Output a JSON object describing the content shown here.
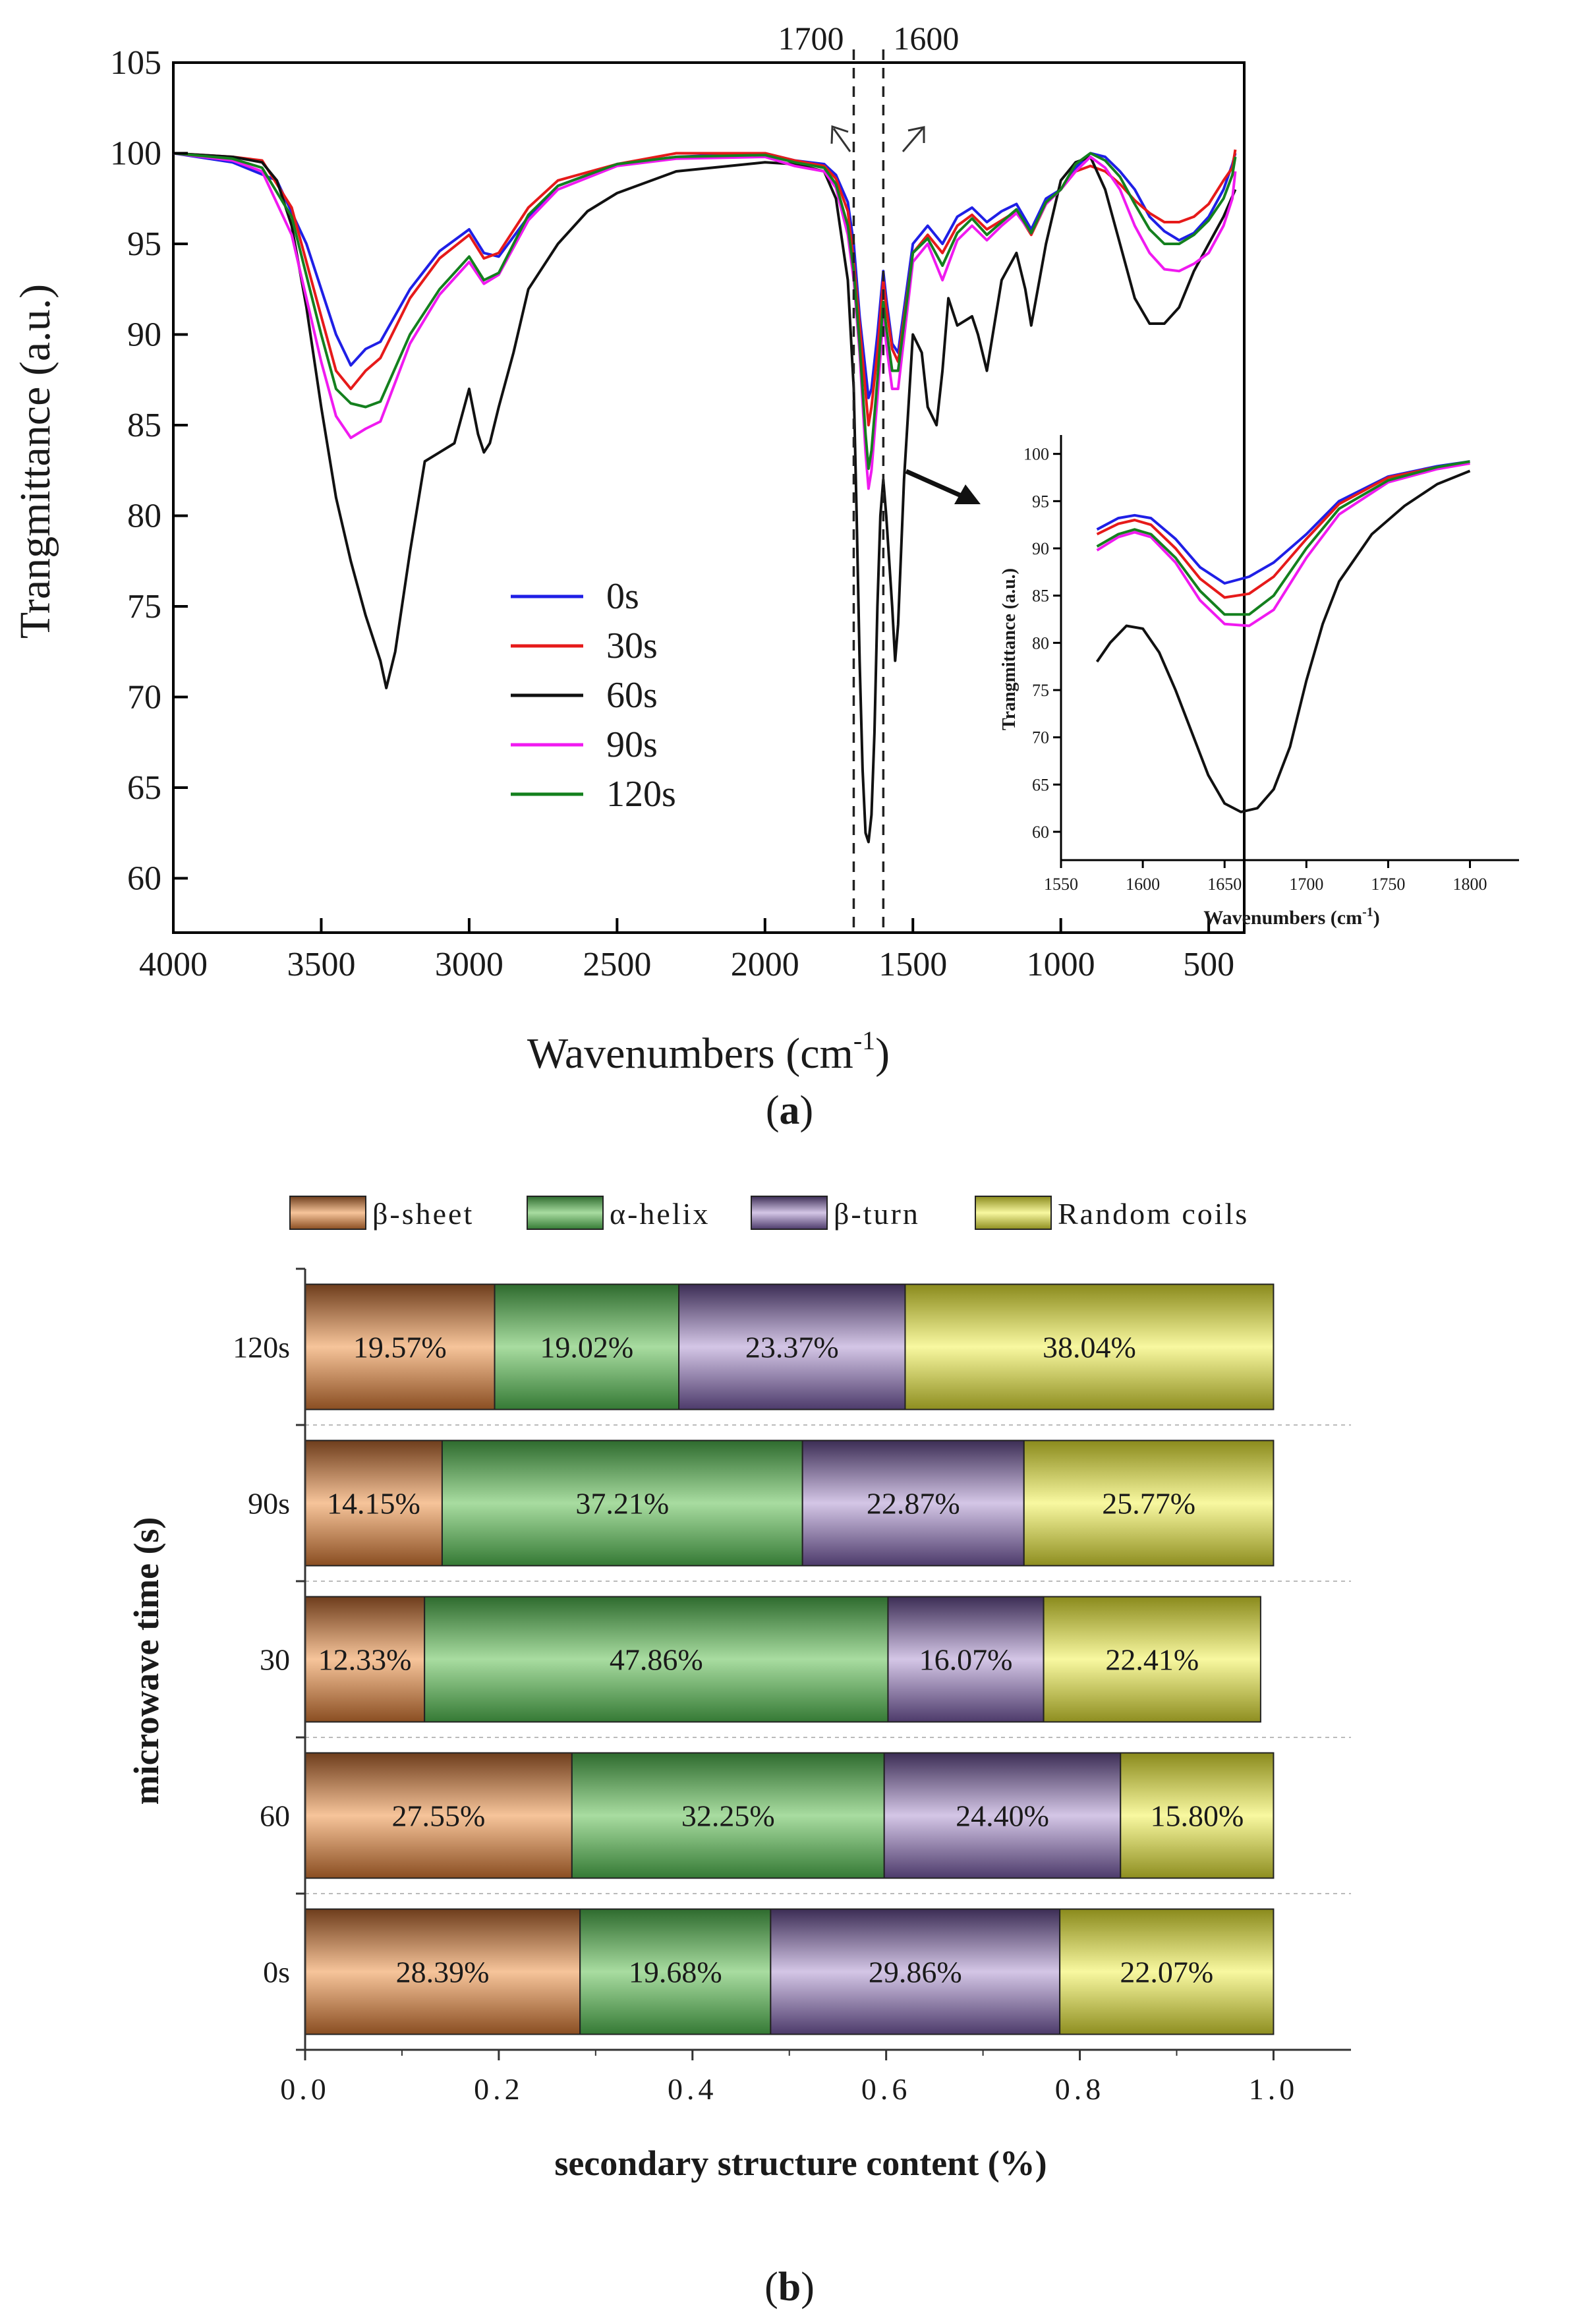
{
  "colors": {
    "s0": "#1f1fe6",
    "s30": "#e61a1a",
    "s60": "#111111",
    "s90": "#f01af0",
    "s120": "#14801e",
    "beta_sheet": "#e2915a",
    "alpha_helix": "#6ec46e",
    "beta_turn": "#9b86b5",
    "random_coils": "#e6e65a"
  },
  "chart_data": [
    {
      "id": "a",
      "type": "line",
      "panel_label": "a",
      "xlabel": "Wavenumbers (cm",
      "xlabel_sup": "-1",
      "xlabel_end": ")",
      "ylabel": "Trangmittance (a.u.)",
      "xlim": [
        4000,
        380
      ],
      "ylim": [
        57,
        105
      ],
      "x_ticks": [
        "4000",
        "3500",
        "3000",
        "2500",
        "2000",
        "1500",
        "1000",
        "500"
      ],
      "y_ticks": [
        "60",
        "65",
        "70",
        "75",
        "80",
        "85",
        "90",
        "95",
        "100",
        "105"
      ],
      "reference_lines": [
        {
          "x": 1700,
          "label": "1700"
        },
        {
          "x": 1600,
          "label": "1600"
        }
      ],
      "legend": [
        "0s",
        "30s",
        "60s",
        "90s",
        "120s"
      ],
      "series": [
        {
          "name": "0s",
          "color_key": "s0",
          "x": [
            4000,
            3800,
            3650,
            3550,
            3450,
            3400,
            3350,
            3300,
            3200,
            3100,
            3000,
            2950,
            2900,
            2800,
            2700,
            2500,
            2300,
            2000,
            1900,
            1800,
            1760,
            1720,
            1700,
            1680,
            1660,
            1650,
            1640,
            1620,
            1600,
            1590,
            1570,
            1550,
            1500,
            1450,
            1400,
            1350,
            1300,
            1250,
            1200,
            1150,
            1100,
            1050,
            1000,
            950,
            900,
            850,
            800,
            750,
            700,
            650,
            600,
            550,
            500,
            450,
            420,
            410
          ],
          "y": [
            100,
            99.5,
            98.5,
            95,
            90,
            88.3,
            89.2,
            89.6,
            92.5,
            94.6,
            95.8,
            94.5,
            94.3,
            96.5,
            98.2,
            99.4,
            99.8,
            100,
            99.6,
            99.4,
            98.8,
            97.3,
            95,
            91,
            88,
            86.5,
            87,
            90,
            93.5,
            92,
            89.5,
            89,
            95,
            96,
            95,
            96.5,
            97,
            96.2,
            96.8,
            97.2,
            95.8,
            97.5,
            98,
            99.2,
            100,
            99.8,
            99,
            98,
            96.5,
            95.7,
            95.2,
            95.6,
            96.5,
            98,
            99.4,
            100
          ]
        },
        {
          "name": "30s",
          "color_key": "s30",
          "x": [
            4000,
            3800,
            3700,
            3600,
            3500,
            3450,
            3400,
            3350,
            3300,
            3200,
            3100,
            3000,
            2950,
            2900,
            2800,
            2700,
            2500,
            2300,
            2000,
            1900,
            1800,
            1760,
            1720,
            1700,
            1680,
            1660,
            1650,
            1640,
            1620,
            1600,
            1590,
            1570,
            1550,
            1500,
            1450,
            1400,
            1350,
            1300,
            1250,
            1200,
            1150,
            1100,
            1050,
            1000,
            950,
            900,
            850,
            800,
            750,
            700,
            650,
            600,
            550,
            500,
            450,
            420,
            410
          ],
          "y": [
            100,
            99.8,
            99.6,
            97,
            91,
            88,
            87,
            88,
            88.7,
            92,
            94.2,
            95.5,
            94.2,
            94.5,
            97,
            98.5,
            99.4,
            100,
            100,
            99.6,
            99.3,
            98.6,
            96.8,
            94,
            90.5,
            86.8,
            85,
            86,
            89,
            93,
            91.5,
            89.2,
            88.5,
            94.5,
            95.5,
            94.5,
            96,
            96.6,
            95.8,
            96.3,
            96.8,
            95.5,
            97.2,
            98,
            99,
            99.3,
            99,
            98.3,
            97.4,
            96.7,
            96.2,
            96.2,
            96.5,
            97.2,
            98.5,
            99.2,
            100.2
          ]
        },
        {
          "name": "60s",
          "color_key": "s60",
          "x": [
            4000,
            3800,
            3700,
            3650,
            3600,
            3550,
            3500,
            3450,
            3400,
            3350,
            3300,
            3280,
            3250,
            3200,
            3150,
            3100,
            3050,
            3000,
            2970,
            2950,
            2930,
            2900,
            2850,
            2800,
            2700,
            2600,
            2500,
            2300,
            2000,
            1900,
            1800,
            1760,
            1720,
            1700,
            1690,
            1680,
            1670,
            1660,
            1650,
            1640,
            1630,
            1620,
            1610,
            1600,
            1590,
            1570,
            1560,
            1550,
            1530,
            1500,
            1470,
            1450,
            1420,
            1400,
            1380,
            1350,
            1300,
            1280,
            1250,
            1220,
            1200,
            1150,
            1120,
            1100,
            1050,
            1000,
            950,
            900,
            850,
            800,
            750,
            700,
            650,
            600,
            550,
            500,
            450,
            410
          ],
          "y": [
            100,
            99.8,
            99.5,
            98.5,
            96,
            91.5,
            86,
            81,
            77.5,
            74.5,
            72,
            70.5,
            72.5,
            78,
            83,
            83.5,
            84,
            87,
            84.5,
            83.5,
            84,
            86,
            89,
            92.5,
            95,
            96.8,
            97.8,
            99,
            99.5,
            99.4,
            99,
            97.5,
            93,
            87,
            80,
            72,
            66,
            62.5,
            62,
            63.5,
            68,
            75,
            80,
            82,
            80,
            75,
            72,
            74,
            82,
            90,
            89,
            86,
            85,
            88,
            92,
            90.5,
            91,
            90,
            88,
            91,
            93,
            94.5,
            92.5,
            90.5,
            95,
            98.5,
            99.5,
            99.8,
            98,
            95,
            92,
            90.6,
            90.6,
            91.5,
            93.5,
            95,
            96.5,
            98
          ]
        },
        {
          "name": "90s",
          "color_key": "s90",
          "x": [
            4000,
            3800,
            3700,
            3600,
            3500,
            3450,
            3400,
            3350,
            3300,
            3200,
            3100,
            3000,
            2950,
            2900,
            2800,
            2700,
            2500,
            2300,
            2000,
            1900,
            1800,
            1760,
            1720,
            1700,
            1680,
            1660,
            1650,
            1640,
            1620,
            1600,
            1590,
            1570,
            1550,
            1500,
            1450,
            1400,
            1350,
            1300,
            1250,
            1200,
            1150,
            1100,
            1050,
            1000,
            950,
            900,
            850,
            800,
            750,
            700,
            650,
            600,
            550,
            500,
            450,
            420,
            410
          ],
          "y": [
            100,
            99.6,
            99,
            95.5,
            88.5,
            85.5,
            84.3,
            84.8,
            85.2,
            89.5,
            92.2,
            94,
            92.8,
            93.3,
            96.3,
            98,
            99.3,
            99.7,
            99.8,
            99.3,
            99,
            98.1,
            95.5,
            93,
            89,
            83.5,
            81.5,
            82.5,
            86.5,
            91,
            89.5,
            87,
            87,
            94,
            95,
            93,
            95.2,
            96,
            95.2,
            96,
            96.7,
            95.6,
            97.2,
            98,
            99,
            99.8,
            99.2,
            98,
            96,
            94.5,
            93.6,
            93.5,
            93.9,
            94.5,
            96,
            97.5,
            99
          ]
        },
        {
          "name": "120s",
          "color_key": "s120",
          "x": [
            4000,
            3800,
            3700,
            3600,
            3500,
            3450,
            3400,
            3350,
            3300,
            3200,
            3100,
            3000,
            2950,
            2900,
            2800,
            2700,
            2500,
            2300,
            2000,
            1900,
            1800,
            1760,
            1720,
            1700,
            1680,
            1660,
            1650,
            1640,
            1620,
            1600,
            1590,
            1570,
            1550,
            1500,
            1450,
            1400,
            1350,
            1300,
            1250,
            1200,
            1150,
            1100,
            1050,
            1000,
            950,
            900,
            850,
            800,
            750,
            700,
            650,
            600,
            550,
            500,
            450,
            420,
            410
          ],
          "y": [
            100,
            99.7,
            99.2,
            96.5,
            90,
            87,
            86.2,
            86,
            86.3,
            90,
            92.5,
            94.3,
            93,
            93.4,
            96.6,
            98.2,
            99.4,
            99.8,
            99.9,
            99.5,
            99.2,
            98.3,
            96,
            93.5,
            89.5,
            84.5,
            82.6,
            83.6,
            87.5,
            91.8,
            90.4,
            88,
            88,
            94.5,
            95.3,
            93.8,
            95.6,
            96.4,
            95.5,
            96.2,
            96.9,
            95.6,
            97.3,
            98,
            99.4,
            100,
            99.6,
            98.7,
            97.2,
            95.8,
            95,
            95,
            95.5,
            96.3,
            97.5,
            98.8,
            99.8
          ]
        }
      ]
    },
    {
      "id": "a-inset",
      "type": "line",
      "xlabel": "Wavenumbers (cm",
      "xlabel_sup": "-1",
      "xlabel_end": ")",
      "ylabel": "Trangmittance (a.u.)",
      "xlim": [
        1550,
        1830
      ],
      "ylim": [
        57,
        102
      ],
      "x_ticks": [
        "1550",
        "1600",
        "1650",
        "1700",
        "1750",
        "1800"
      ],
      "y_ticks": [
        "60",
        "65",
        "70",
        "75",
        "80",
        "85",
        "90",
        "95",
        "100"
      ],
      "series": [
        {
          "name": "0s",
          "color_key": "s0",
          "x": [
            1572,
            1585,
            1595,
            1605,
            1620,
            1635,
            1650,
            1665,
            1680,
            1700,
            1720,
            1750,
            1780,
            1800
          ],
          "y": [
            92,
            93.2,
            93.5,
            93.2,
            91,
            88,
            86.3,
            87,
            88.5,
            91.5,
            95,
            97.6,
            98.7,
            99.2
          ]
        },
        {
          "name": "30s",
          "color_key": "s30",
          "x": [
            1572,
            1585,
            1595,
            1605,
            1620,
            1635,
            1650,
            1665,
            1680,
            1700,
            1720,
            1750,
            1780,
            1800
          ],
          "y": [
            91.5,
            92.6,
            93,
            92.5,
            90,
            86.8,
            84.8,
            85.2,
            87,
            91,
            94.7,
            97.5,
            98.6,
            99
          ]
        },
        {
          "name": "60s",
          "color_key": "s60",
          "x": [
            1572,
            1580,
            1590,
            1600,
            1610,
            1620,
            1630,
            1640,
            1650,
            1660,
            1670,
            1680,
            1690,
            1700,
            1710,
            1720,
            1740,
            1760,
            1780,
            1800
          ],
          "y": [
            78,
            80,
            81.8,
            81.5,
            79,
            75,
            70.5,
            66,
            63,
            62.1,
            62.5,
            64.5,
            69,
            76,
            82,
            86.5,
            91.5,
            94.5,
            96.8,
            98.2
          ]
        },
        {
          "name": "90s",
          "color_key": "s90",
          "x": [
            1572,
            1585,
            1595,
            1605,
            1620,
            1635,
            1650,
            1665,
            1680,
            1700,
            1720,
            1750,
            1780,
            1800
          ],
          "y": [
            89.8,
            91.2,
            91.7,
            91.2,
            88.5,
            84.5,
            82,
            81.8,
            83.5,
            89,
            93.6,
            97,
            98.4,
            99
          ]
        },
        {
          "name": "120s",
          "color_key": "s120",
          "x": [
            1572,
            1585,
            1595,
            1605,
            1620,
            1635,
            1650,
            1665,
            1680,
            1700,
            1720,
            1750,
            1780,
            1800
          ],
          "y": [
            90.2,
            91.5,
            92,
            91.5,
            89,
            85.5,
            83,
            83,
            85,
            90,
            94.2,
            97.2,
            98.6,
            99.2
          ]
        }
      ]
    },
    {
      "id": "b",
      "type": "bar",
      "orientation": "horizontal",
      "stacked": true,
      "panel_label": "b",
      "xlabel": "secondary structure content (%)",
      "ylabel": "microwave time (s)",
      "xlim": [
        0,
        1.08
      ],
      "x_ticks": [
        "0.0",
        "0.2",
        "0.4",
        "0.6",
        "0.8",
        "1.0"
      ],
      "categories": [
        "120s",
        "90s",
        "30",
        "60",
        "0s"
      ],
      "legend": [
        "β-sheet",
        "α-helix",
        "β-turn",
        "Random coils"
      ],
      "series": [
        {
          "name": "β-sheet",
          "color_key": "beta_sheet",
          "values": [
            0.1957,
            0.1415,
            0.1233,
            0.2755,
            0.2839
          ],
          "labels": [
            "19.57%",
            "14.15%",
            "12.33%",
            "27.55%",
            "28.39%"
          ]
        },
        {
          "name": "α-helix",
          "color_key": "alpha_helix",
          "values": [
            0.1902,
            0.3721,
            0.4786,
            0.3225,
            0.1968
          ],
          "labels": [
            "19.02%",
            "37.21%",
            "47.86%",
            "32.25%",
            "19.68%"
          ]
        },
        {
          "name": "β-turn",
          "color_key": "beta_turn",
          "values": [
            0.2337,
            0.2287,
            0.1607,
            0.244,
            0.2986
          ],
          "labels": [
            "23.37%",
            "22.87%",
            "16.07%",
            "24.40%",
            "29.86%"
          ]
        },
        {
          "name": "Random coils",
          "color_key": "random_coils",
          "values": [
            0.3804,
            0.2577,
            0.2241,
            0.158,
            0.2207
          ],
          "labels": [
            "38.04%",
            "25.77%",
            "22.41%",
            "15.80%",
            "22.07%"
          ]
        }
      ]
    }
  ]
}
